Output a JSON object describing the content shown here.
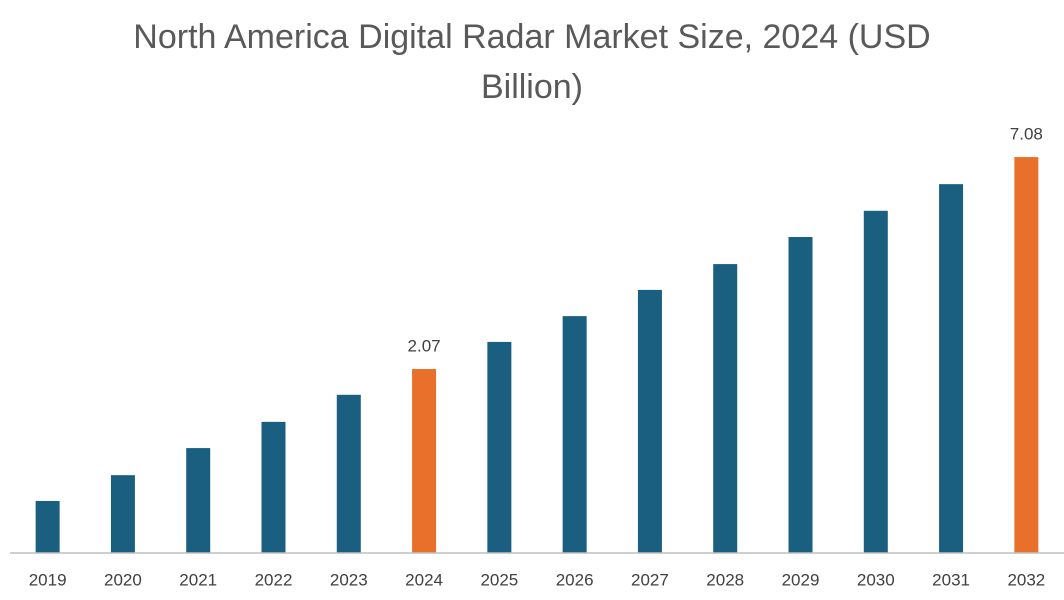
{
  "chart_data": {
    "type": "bar",
    "title": "North America Digital Radar Market Size, 2024 (USD Billion)",
    "categories": [
      "2019",
      "2020",
      "2021",
      "2022",
      "2023",
      "2024",
      "2025",
      "2026",
      "2027",
      "2028",
      "2029",
      "2030",
      "2031",
      "2032"
    ],
    "values": [
      -1.05,
      -0.44,
      0.2,
      0.82,
      1.46,
      2.07,
      2.71,
      3.32,
      3.94,
      4.55,
      5.19,
      5.81,
      6.44,
      7.08
    ],
    "value_labels": [
      null,
      null,
      null,
      null,
      null,
      "2.07",
      null,
      null,
      null,
      null,
      null,
      null,
      null,
      "7.08"
    ],
    "colors": [
      "#1a5e80",
      "#1a5e80",
      "#1a5e80",
      "#1a5e80",
      "#1a5e80",
      "#e8702a",
      "#1a5e80",
      "#1a5e80",
      "#1a5e80",
      "#1a5e80",
      "#1a5e80",
      "#1a5e80",
      "#1a5e80",
      "#e8702a"
    ],
    "ylim": [
      -2.28,
      7.72
    ]
  }
}
